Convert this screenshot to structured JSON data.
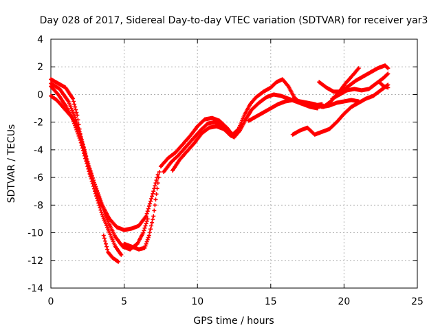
{
  "chart_data": {
    "type": "scatter",
    "title": "Day 028 of 2017, Sidereal Day-to-day VTEC variation (SDTVAR) for receiver yar3",
    "xlabel": "GPS time / hours",
    "ylabel": "SDTVAR / TECUs",
    "xlim": [
      0,
      25
    ],
    "ylim": [
      -14,
      4
    ],
    "xticks": [
      0,
      5,
      10,
      15,
      20,
      25
    ],
    "yticks": [
      -14,
      -12,
      -10,
      -8,
      -6,
      -4,
      -2,
      0,
      2,
      4
    ],
    "grid": true,
    "legend": "none",
    "marker": "plus",
    "series": [
      {
        "color": "#ff0000",
        "tracks": [
          [
            [
              0.0,
              1.1
            ],
            [
              0.5,
              0.8
            ],
            [
              1.0,
              0.5
            ],
            [
              1.5,
              -0.3
            ],
            [
              1.8,
              -1.5
            ],
            [
              2.1,
              -3.5
            ],
            [
              2.5,
              -5.0
            ],
            [
              3.0,
              -6.5
            ],
            [
              3.5,
              -8.0
            ],
            [
              4.0,
              -9.0
            ],
            [
              4.5,
              -9.6
            ],
            [
              5.0,
              -9.8
            ],
            [
              5.5,
              -9.7
            ],
            [
              6.0,
              -9.5
            ],
            [
              6.5,
              -8.8
            ],
            [
              7.0,
              -7.0
            ],
            [
              7.3,
              -5.8
            ]
          ],
          [
            [
              0.0,
              0.8
            ],
            [
              0.6,
              0.4
            ],
            [
              1.2,
              -0.5
            ],
            [
              1.7,
              -1.8
            ],
            [
              2.0,
              -3.0
            ],
            [
              2.4,
              -4.5
            ],
            [
              2.9,
              -6.2
            ],
            [
              3.4,
              -7.8
            ],
            [
              3.9,
              -9.2
            ],
            [
              4.4,
              -10.3
            ],
            [
              4.9,
              -11.0
            ],
            [
              5.4,
              -11.2
            ],
            [
              5.9,
              -10.8
            ],
            [
              6.3,
              -10.0
            ],
            [
              6.6,
              -9.0
            ]
          ],
          [
            [
              0.0,
              0.6
            ],
            [
              0.5,
              0.0
            ],
            [
              1.0,
              -0.8
            ],
            [
              1.5,
              -1.8
            ],
            [
              2.0,
              -3.3
            ],
            [
              2.5,
              -5.2
            ],
            [
              3.0,
              -7.0
            ],
            [
              3.5,
              -8.7
            ],
            [
              4.0,
              -10.0
            ],
            [
              4.4,
              -11.0
            ],
            [
              4.8,
              -11.6
            ]
          ],
          [
            [
              0.0,
              -0.1
            ],
            [
              0.4,
              -0.4
            ],
            [
              0.9,
              -1.0
            ],
            [
              1.4,
              -1.6
            ],
            [
              1.9,
              -2.5
            ],
            [
              2.3,
              -4.0
            ],
            [
              2.7,
              -5.8
            ]
          ],
          [
            [
              3.6,
              -10.2
            ],
            [
              3.9,
              -11.4
            ],
            [
              4.2,
              -11.8
            ],
            [
              4.6,
              -12.1
            ]
          ],
          [
            [
              5.0,
              -10.8
            ],
            [
              5.5,
              -11.0
            ],
            [
              6.0,
              -11.2
            ],
            [
              6.4,
              -11.1
            ],
            [
              6.7,
              -10.2
            ],
            [
              7.0,
              -8.8
            ],
            [
              7.2,
              -7.2
            ],
            [
              7.4,
              -5.6
            ]
          ],
          [
            [
              7.5,
              -5.2
            ],
            [
              8.0,
              -4.6
            ],
            [
              8.5,
              -4.2
            ],
            [
              9.0,
              -3.6
            ],
            [
              9.5,
              -3.0
            ],
            [
              10.0,
              -2.3
            ],
            [
              10.5,
              -1.8
            ],
            [
              11.0,
              -1.7
            ],
            [
              11.5,
              -1.9
            ],
            [
              12.0,
              -2.4
            ],
            [
              12.4,
              -2.9
            ],
            [
              12.8,
              -2.5
            ],
            [
              13.2,
              -1.5
            ],
            [
              13.6,
              -0.7
            ],
            [
              14.0,
              -0.2
            ],
            [
              14.5,
              0.2
            ],
            [
              15.0,
              0.5
            ],
            [
              15.4,
              0.9
            ],
            [
              15.8,
              1.1
            ],
            [
              16.2,
              0.6
            ],
            [
              16.6,
              -0.2
            ],
            [
              17.0,
              -0.6
            ],
            [
              17.5,
              -0.7
            ],
            [
              18.0,
              -0.8
            ],
            [
              18.5,
              -0.7
            ]
          ],
          [
            [
              7.7,
              -5.6
            ],
            [
              8.2,
              -4.9
            ],
            [
              8.7,
              -4.4
            ],
            [
              9.2,
              -3.8
            ],
            [
              9.7,
              -3.2
            ],
            [
              10.2,
              -2.6
            ],
            [
              10.7,
              -2.1
            ],
            [
              11.2,
              -2.0
            ],
            [
              11.7,
              -2.2
            ],
            [
              12.1,
              -2.8
            ],
            [
              12.5,
              -3.1
            ],
            [
              12.9,
              -2.6
            ],
            [
              13.3,
              -1.8
            ],
            [
              13.7,
              -1.1
            ],
            [
              14.2,
              -0.6
            ],
            [
              14.7,
              -0.2
            ],
            [
              15.2,
              0.0
            ],
            [
              15.7,
              -0.1
            ],
            [
              16.2,
              -0.3
            ],
            [
              16.7,
              -0.5
            ],
            [
              17.2,
              -0.7
            ],
            [
              17.7,
              -0.9
            ],
            [
              18.2,
              -1.0
            ]
          ],
          [
            [
              8.3,
              -5.5
            ],
            [
              8.8,
              -4.7
            ],
            [
              9.3,
              -4.1
            ],
            [
              9.8,
              -3.5
            ],
            [
              10.3,
              -2.8
            ],
            [
              10.8,
              -2.4
            ],
            [
              11.3,
              -2.3
            ],
            [
              11.8,
              -2.5
            ],
            [
              12.3,
              -3.0
            ]
          ],
          [
            [
              13.5,
              -1.9
            ],
            [
              14.0,
              -1.6
            ],
            [
              14.5,
              -1.3
            ],
            [
              15.0,
              -1.0
            ],
            [
              15.5,
              -0.7
            ],
            [
              16.0,
              -0.5
            ],
            [
              16.5,
              -0.4
            ],
            [
              17.0,
              -0.5
            ],
            [
              17.5,
              -0.6
            ],
            [
              18.0,
              -0.7
            ],
            [
              18.5,
              -0.9
            ],
            [
              19.0,
              -0.8
            ],
            [
              19.5,
              -0.6
            ],
            [
              20.0,
              -0.5
            ],
            [
              20.5,
              -0.4
            ],
            [
              21.0,
              -0.5
            ]
          ],
          [
            [
              18.3,
              0.9
            ],
            [
              18.8,
              0.5
            ],
            [
              19.3,
              0.2
            ],
            [
              19.8,
              0.2
            ],
            [
              20.3,
              0.6
            ],
            [
              20.8,
              1.0
            ],
            [
              21.3,
              1.3
            ],
            [
              21.8,
              1.6
            ],
            [
              22.3,
              1.9
            ],
            [
              22.8,
              2.1
            ],
            [
              23.0,
              1.9
            ]
          ],
          [
            [
              18.6,
              -0.9
            ],
            [
              19.1,
              -0.5
            ],
            [
              19.6,
              0.1
            ],
            [
              20.1,
              0.8
            ],
            [
              20.6,
              1.4
            ],
            [
              21.0,
              1.9
            ]
          ],
          [
            [
              19.2,
              -0.3
            ],
            [
              19.7,
              0.0
            ],
            [
              20.2,
              0.3
            ],
            [
              20.7,
              0.4
            ],
            [
              21.2,
              0.3
            ],
            [
              21.7,
              0.4
            ],
            [
              22.2,
              0.8
            ],
            [
              22.7,
              1.2
            ],
            [
              23.0,
              1.5
            ]
          ],
          [
            [
              16.5,
              -2.9
            ],
            [
              17.0,
              -2.6
            ],
            [
              17.5,
              -2.4
            ],
            [
              18.0,
              -2.9
            ],
            [
              18.5,
              -2.7
            ],
            [
              19.0,
              -2.5
            ],
            [
              19.5,
              -2.0
            ],
            [
              20.0,
              -1.4
            ],
            [
              20.5,
              -0.9
            ],
            [
              21.0,
              -0.6
            ],
            [
              21.5,
              -0.3
            ],
            [
              22.0,
              -0.1
            ],
            [
              22.5,
              0.3
            ],
            [
              23.0,
              0.7
            ]
          ],
          [
            [
              22.4,
              0.9
            ],
            [
              22.7,
              0.6
            ],
            [
              23.0,
              0.5
            ]
          ]
        ]
      }
    ]
  }
}
